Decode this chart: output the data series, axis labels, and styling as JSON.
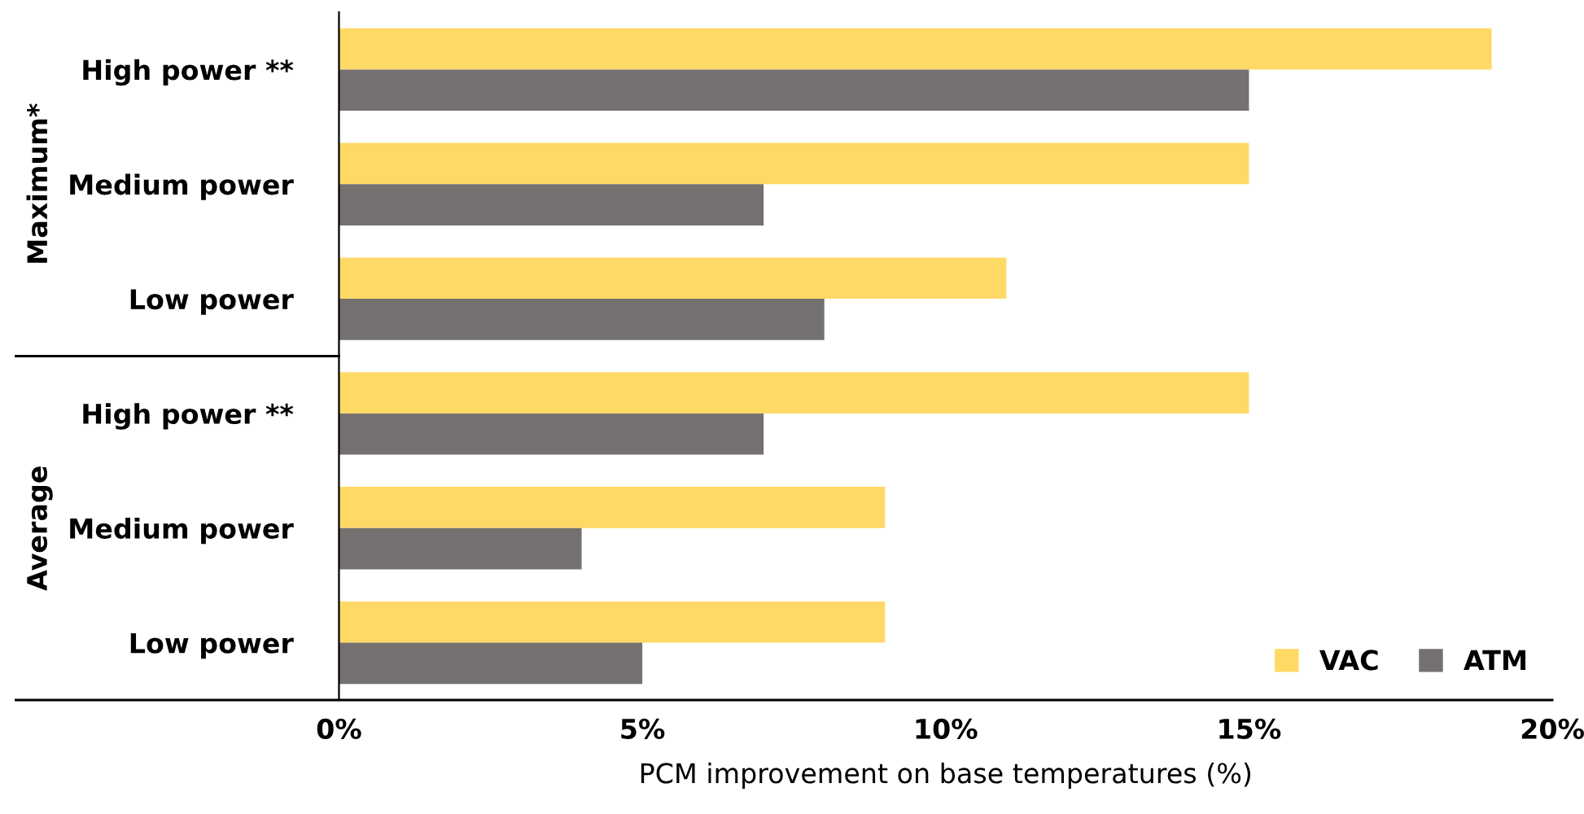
{
  "chart_data": {
    "type": "bar",
    "orientation": "horizontal",
    "categories": [
      "High power **",
      "Medium power",
      "Low power",
      "High power **",
      "Medium power",
      "Low power"
    ],
    "series": [
      {
        "name": "VAC",
        "color": "#ffd966",
        "values": [
          19,
          15,
          11,
          15,
          9,
          9
        ]
      },
      {
        "name": "ATM",
        "color": "#767171",
        "values": [
          15,
          7,
          8,
          7,
          4,
          5
        ]
      }
    ],
    "xlabel": "PCM improvement on base temperatures (%)",
    "xlim": [
      0,
      20
    ],
    "xticks": [
      {
        "value": 0,
        "label": "0%"
      },
      {
        "value": 5,
        "label": "5%"
      },
      {
        "value": 10,
        "label": "10%"
      },
      {
        "value": 15,
        "label": "15%"
      },
      {
        "value": 20,
        "label": "20%"
      }
    ],
    "annotations": [
      "Maximum*",
      "Average"
    ],
    "grid": false,
    "legend": "bottom right"
  }
}
